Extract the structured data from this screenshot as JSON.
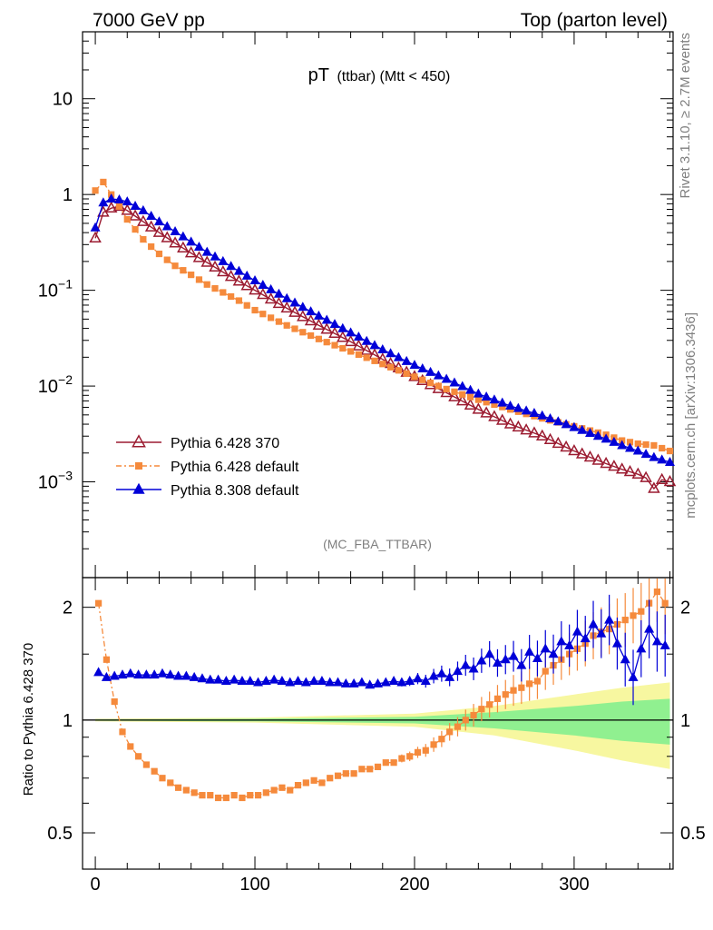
{
  "header": {
    "left": "7000 GeV pp",
    "right": "Top (parton level)"
  },
  "title": {
    "main": "pT",
    "sub": "(ttbar) (Mtt < 450)"
  },
  "side_labels": {
    "rivet": "Rivet 3.1.10, ≥ 2.7M events",
    "mcplots": "mcplots.cern.ch [arXiv:1306.3436]"
  },
  "analysis_tag": "(MC_FBA_TTBAR)",
  "ratio_ylabel": "Ratio to Pythia 6.428 370",
  "colors": {
    "p6_370": "#9b1b30",
    "p6_default": "#f58a3c",
    "p8_default": "#0000d8",
    "band_inner": "#90f090",
    "band_outer": "#f7f7a0"
  },
  "legend": [
    {
      "name": "Pythia 6.428 370",
      "marker": "open-triangle",
      "line": "solid"
    },
    {
      "name": "Pythia 6.428 default",
      "marker": "square",
      "line": "dash-dot"
    },
    {
      "name": "Pythia 8.308 default",
      "marker": "filled-triangle",
      "line": "solid"
    }
  ],
  "chart_data": [
    {
      "type": "line",
      "panel": "main",
      "yscale": "log",
      "xlim": [
        -8,
        362
      ],
      "ylim": [
        0.0001,
        50
      ],
      "yticks": [
        {
          "v": 10,
          "base": "10",
          "exp": ""
        },
        {
          "v": 1,
          "base": "1",
          "exp": ""
        },
        {
          "v": 0.1,
          "base": "10",
          "exp": "−1"
        },
        {
          "v": 0.01,
          "base": "10",
          "exp": "−2"
        },
        {
          "v": 0.001,
          "base": "10",
          "exp": "−3"
        }
      ],
      "series": [
        {
          "name": "Pythia 6.428 370",
          "x": [
            0,
            5,
            10,
            15,
            20,
            30,
            40,
            50,
            60,
            70,
            80,
            90,
            100,
            120,
            140,
            160,
            180,
            200,
            220,
            240,
            260,
            280,
            300,
            320,
            330,
            340,
            345,
            350,
            355,
            360
          ],
          "y": [
            0.35,
            0.65,
            0.72,
            0.75,
            0.68,
            0.52,
            0.4,
            0.31,
            0.245,
            0.195,
            0.155,
            0.124,
            0.1,
            0.065,
            0.043,
            0.029,
            0.019,
            0.0125,
            0.0085,
            0.0057,
            0.004,
            0.003,
            0.0021,
            0.00155,
            0.00135,
            0.0012,
            0.0011,
            0.00085,
            0.00105,
            0.001
          ]
        },
        {
          "name": "Pythia 6.428 default",
          "x": [
            0,
            5,
            10,
            15,
            20,
            30,
            40,
            50,
            60,
            70,
            80,
            90,
            100,
            120,
            140,
            160,
            180,
            200,
            220,
            240,
            260,
            280,
            300,
            320,
            330,
            340,
            350,
            360
          ],
          "y": [
            1.1,
            1.35,
            1.0,
            0.75,
            0.55,
            0.34,
            0.24,
            0.18,
            0.145,
            0.115,
            0.095,
            0.078,
            0.062,
            0.043,
            0.031,
            0.023,
            0.017,
            0.0125,
            0.0093,
            0.0072,
            0.0057,
            0.0046,
            0.0038,
            0.0031,
            0.0027,
            0.0025,
            0.0024,
            0.0021
          ]
        },
        {
          "name": "Pythia 8.308 default",
          "x": [
            0,
            5,
            10,
            15,
            20,
            30,
            40,
            50,
            60,
            70,
            80,
            90,
            100,
            120,
            140,
            160,
            180,
            200,
            220,
            240,
            260,
            280,
            300,
            320,
            330,
            340,
            350,
            360
          ],
          "y": [
            0.45,
            0.82,
            0.9,
            0.88,
            0.84,
            0.68,
            0.52,
            0.41,
            0.32,
            0.25,
            0.2,
            0.158,
            0.126,
            0.082,
            0.054,
            0.036,
            0.024,
            0.0165,
            0.0118,
            0.0083,
            0.0062,
            0.0049,
            0.0037,
            0.0028,
            0.0024,
            0.0021,
            0.0018,
            0.0016
          ]
        }
      ]
    },
    {
      "type": "line",
      "panel": "ratio",
      "yscale": "log",
      "xlim": [
        -8,
        362
      ],
      "ylim": [
        0.4,
        2.4
      ],
      "xticks": [
        0,
        100,
        200,
        300
      ],
      "yticks": [
        {
          "v": 2,
          "label": "2"
        },
        {
          "v": 1,
          "label": "1"
        },
        {
          "v": 0.5,
          "label": "0.5"
        }
      ],
      "reference": 1,
      "band": {
        "x": [
          0,
          100,
          200,
          250,
          300,
          330,
          360
        ],
        "inner_half": [
          0.004,
          0.008,
          0.02,
          0.05,
          0.09,
          0.12,
          0.14
        ],
        "outer_half": [
          0.008,
          0.015,
          0.04,
          0.09,
          0.17,
          0.22,
          0.26
        ]
      },
      "series": [
        {
          "name": "Pythia 6.428 default",
          "x": [
            2,
            7,
            12,
            17,
            22,
            27,
            32,
            37,
            42,
            47,
            52,
            57,
            62,
            67,
            72,
            77,
            82,
            87,
            92,
            97,
            102,
            107,
            112,
            117,
            122,
            127,
            132,
            137,
            142,
            147,
            152,
            157,
            162,
            167,
            172,
            177,
            182,
            187,
            192,
            197,
            202,
            207,
            212,
            217,
            222,
            227,
            232,
            237,
            242,
            247,
            252,
            257,
            262,
            267,
            272,
            277,
            282,
            287,
            292,
            297,
            302,
            307,
            312,
            317,
            322,
            327,
            332,
            337,
            342,
            347,
            352,
            357
          ],
          "y": [
            2.05,
            1.45,
            1.12,
            0.93,
            0.85,
            0.8,
            0.76,
            0.73,
            0.7,
            0.68,
            0.66,
            0.65,
            0.64,
            0.63,
            0.63,
            0.62,
            0.62,
            0.63,
            0.62,
            0.63,
            0.63,
            0.64,
            0.65,
            0.66,
            0.65,
            0.67,
            0.68,
            0.69,
            0.68,
            0.7,
            0.71,
            0.72,
            0.72,
            0.74,
            0.74,
            0.75,
            0.77,
            0.77,
            0.79,
            0.8,
            0.82,
            0.83,
            0.86,
            0.89,
            0.93,
            0.96,
            1.0,
            1.03,
            1.07,
            1.1,
            1.14,
            1.17,
            1.2,
            1.22,
            1.25,
            1.27,
            1.35,
            1.4,
            1.45,
            1.5,
            1.55,
            1.6,
            1.68,
            1.72,
            1.75,
            1.8,
            1.85,
            1.9,
            1.95,
            2.05,
            2.2,
            2.05
          ]
        },
        {
          "name": "Pythia 8.308 default",
          "x": [
            2,
            7,
            12,
            17,
            22,
            27,
            32,
            37,
            42,
            47,
            52,
            57,
            62,
            67,
            72,
            77,
            82,
            87,
            92,
            97,
            102,
            107,
            112,
            117,
            122,
            127,
            132,
            137,
            142,
            147,
            152,
            157,
            162,
            167,
            172,
            177,
            182,
            187,
            192,
            197,
            202,
            207,
            212,
            217,
            222,
            227,
            232,
            237,
            242,
            247,
            252,
            257,
            262,
            267,
            272,
            277,
            282,
            287,
            292,
            297,
            302,
            307,
            312,
            317,
            322,
            327,
            332,
            337,
            342,
            347,
            352,
            357
          ],
          "y": [
            1.34,
            1.3,
            1.31,
            1.32,
            1.33,
            1.32,
            1.32,
            1.32,
            1.33,
            1.32,
            1.31,
            1.31,
            1.3,
            1.29,
            1.28,
            1.28,
            1.27,
            1.28,
            1.27,
            1.27,
            1.26,
            1.27,
            1.28,
            1.27,
            1.26,
            1.27,
            1.26,
            1.27,
            1.27,
            1.26,
            1.26,
            1.25,
            1.25,
            1.26,
            1.24,
            1.25,
            1.26,
            1.27,
            1.26,
            1.27,
            1.29,
            1.27,
            1.31,
            1.33,
            1.3,
            1.35,
            1.4,
            1.37,
            1.44,
            1.5,
            1.42,
            1.45,
            1.48,
            1.4,
            1.52,
            1.46,
            1.55,
            1.5,
            1.62,
            1.58,
            1.72,
            1.65,
            1.8,
            1.7,
            1.85,
            1.6,
            1.45,
            1.3,
            1.55,
            1.75,
            1.62,
            1.58
          ]
        }
      ]
    }
  ]
}
